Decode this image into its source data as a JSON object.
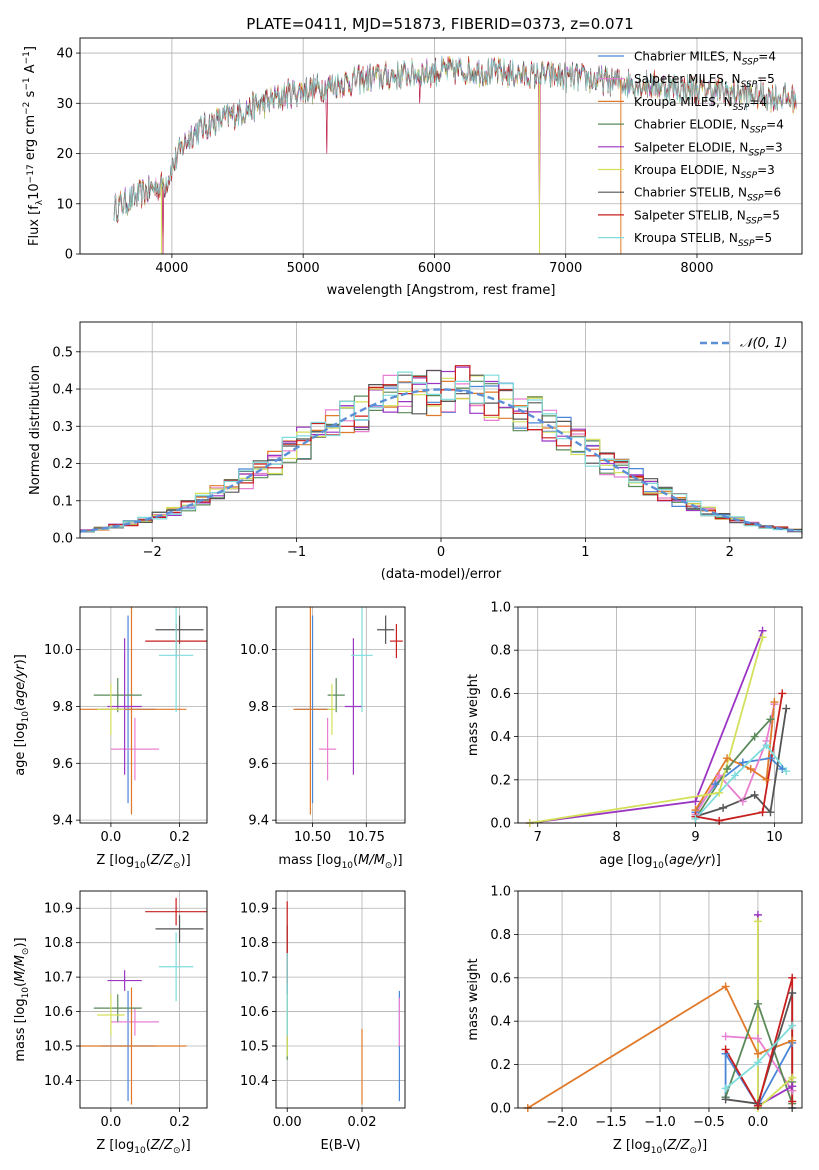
{
  "figure": {
    "title": "PLATE=0411, MJD=51873, FIBERID=0373, z=0.071"
  },
  "colors": {
    "Chabrier MILES": "#4a86d8",
    "Salpeter MILES": "#e87fd0",
    "Kroupa MILES": "#e07a2a",
    "Chabrier ELODIE": "#5a8a5a",
    "Salpeter ELODIE": "#9b35c4",
    "Kroupa ELODIE": "#d4e05a",
    "Chabrier STELIB": "#555555",
    "Salpeter STELIB": "#c81e1e",
    "Kroupa STELIB": "#7fdcdc",
    "gaussian": "#5b8fd6",
    "grid": "#b0b0b0"
  },
  "legend_spectrum": [
    {
      "name": "Chabrier MILES",
      "n": "4"
    },
    {
      "name": "Salpeter MILES",
      "n": "5"
    },
    {
      "name": "Kroupa MILES",
      "n": "4"
    },
    {
      "name": "Chabrier ELODIE",
      "n": "4"
    },
    {
      "name": "Salpeter ELODIE",
      "n": "3"
    },
    {
      "name": "Kroupa ELODIE",
      "n": "3"
    },
    {
      "name": "Chabrier STELIB",
      "n": "6"
    },
    {
      "name": "Salpeter STELIB",
      "n": "5"
    },
    {
      "name": "Kroupa STELIB",
      "n": "5"
    }
  ],
  "chart_data": [
    {
      "id": "spectrum",
      "type": "line",
      "xlabel": "wavelength [Angstrom, rest frame]",
      "ylabel": "Flux [f_λ10^-17 erg cm^-2 s^-1 A^-1]",
      "xlim": [
        3300,
        8800
      ],
      "ylim": [
        0,
        43
      ],
      "xticks": [
        4000,
        5000,
        6000,
        7000,
        8000
      ],
      "yticks": [
        0,
        10,
        20,
        30,
        40
      ],
      "continuum_x": [
        3550,
        3700,
        3850,
        3950,
        4050,
        4150,
        4300,
        4500,
        4700,
        4900,
        5100,
        5300,
        5500,
        5700,
        5900,
        6100,
        6300,
        6500,
        6700,
        6900,
        7100,
        7300,
        7500,
        7700,
        7900,
        8100,
        8300,
        8500,
        8700
      ],
      "continuum_y": [
        9,
        11,
        13,
        14,
        20,
        24,
        26,
        28,
        30,
        32,
        33,
        34,
        35,
        35.5,
        36,
        36.5,
        36.5,
        36,
        35.5,
        35.5,
        35,
        34.5,
        34,
        33.5,
        33,
        32.5,
        32,
        31.5,
        31
      ],
      "grid": true
    },
    {
      "id": "residuals",
      "type": "histogram",
      "xlabel": "(data-model)/error",
      "ylabel": "Normed distribution",
      "xlim": [
        -2.5,
        2.5
      ],
      "ylim": [
        0,
        0.58
      ],
      "xticks": [
        -2,
        -1,
        0,
        1,
        2
      ],
      "yticks": [
        0,
        0.1,
        0.2,
        0.3,
        0.4,
        0.5
      ],
      "bin_width": 0.1,
      "legend": "𝒩(0, 1)",
      "grid": true
    },
    {
      "id": "age-vs-Z",
      "type": "errorbar",
      "xlabel": "Z [log10(Z/Z⊙)]",
      "ylabel": "age [log10(age/yr)]",
      "xlim": [
        -0.09,
        0.28
      ],
      "ylim": [
        9.39,
        10.15
      ],
      "xticks": [
        0.0,
        0.2
      ],
      "yticks": [
        9.4,
        9.6,
        9.8,
        10.0
      ],
      "points": [
        {
          "series": "Chabrier MILES",
          "x": 0.05,
          "xerr": 0.08,
          "y": 9.79,
          "yerr": 0.33
        },
        {
          "series": "Salpeter MILES",
          "x": 0.07,
          "xerr": 0.07,
          "y": 9.65,
          "yerr": 0.11
        },
        {
          "series": "Kroupa MILES",
          "x": 0.06,
          "xerr": 0.16,
          "y": 9.79,
          "yerr": 0.37
        },
        {
          "series": "Chabrier ELODIE",
          "x": 0.02,
          "xerr": 0.07,
          "y": 9.84,
          "yerr": 0.06
        },
        {
          "series": "Salpeter ELODIE",
          "x": 0.04,
          "xerr": 0.05,
          "y": 9.8,
          "yerr": 0.24
        },
        {
          "series": "Kroupa ELODIE",
          "x": 0.0,
          "xerr": 0.04,
          "y": 9.79,
          "yerr": 0.09
        },
        {
          "series": "Chabrier STELIB",
          "x": 0.2,
          "xerr": 0.07,
          "y": 10.07,
          "yerr": 0.05
        },
        {
          "series": "Salpeter STELIB",
          "x": 0.19,
          "xerr": 0.09,
          "y": 10.03,
          "yerr": 0.06
        },
        {
          "series": "Kroupa STELIB",
          "x": 0.19,
          "xerr": 0.05,
          "y": 9.98,
          "yerr": 0.2
        }
      ],
      "grid": true
    },
    {
      "id": "age-vs-mass",
      "type": "errorbar",
      "xlabel": "mass [log10(M/M⊙)]",
      "ylabel": "",
      "xlim": [
        10.33,
        10.93
      ],
      "ylim": [
        9.39,
        10.15
      ],
      "xticks": [
        10.5,
        10.75
      ],
      "yticks": [
        9.4,
        9.6,
        9.8,
        10.0
      ],
      "points": [
        {
          "series": "Chabrier MILES",
          "x": 10.5,
          "xerr": 0.08,
          "y": 9.79,
          "yerr": 0.33
        },
        {
          "series": "Salpeter MILES",
          "x": 10.57,
          "xerr": 0.04,
          "y": 9.65,
          "yerr": 0.11
        },
        {
          "series": "Kroupa MILES",
          "x": 10.49,
          "xerr": 0.08,
          "y": 9.79,
          "yerr": 0.37
        },
        {
          "series": "Chabrier ELODIE",
          "x": 10.61,
          "xerr": 0.04,
          "y": 9.84,
          "yerr": 0.06
        },
        {
          "series": "Salpeter ELODIE",
          "x": 10.69,
          "xerr": 0.04,
          "y": 9.8,
          "yerr": 0.24
        },
        {
          "series": "Kroupa ELODIE",
          "x": 10.59,
          "xerr": 0.02,
          "y": 9.79,
          "yerr": 0.09
        },
        {
          "series": "Chabrier STELIB",
          "x": 10.84,
          "xerr": 0.04,
          "y": 10.07,
          "yerr": 0.05
        },
        {
          "series": "Salpeter STELIB",
          "x": 10.89,
          "xerr": 0.03,
          "y": 10.03,
          "yerr": 0.06
        },
        {
          "series": "Kroupa STELIB",
          "x": 10.73,
          "xerr": 0.05,
          "y": 9.98,
          "yerr": 0.2
        }
      ],
      "grid": true
    },
    {
      "id": "mass-vs-Z",
      "type": "errorbar",
      "xlabel": "Z [log10(Z/Z⊙)]",
      "ylabel": "mass [log10(M/M⊙)]",
      "xlim": [
        -0.09,
        0.28
      ],
      "ylim": [
        10.32,
        10.95
      ],
      "xticks": [
        0.0,
        0.2
      ],
      "yticks": [
        10.4,
        10.5,
        10.6,
        10.7,
        10.8,
        10.9
      ],
      "points": [
        {
          "series": "Chabrier MILES",
          "x": 0.05,
          "xerr": 0.08,
          "y": 10.5,
          "yerr": 0.16
        },
        {
          "series": "Salpeter MILES",
          "x": 0.07,
          "xerr": 0.07,
          "y": 10.57,
          "yerr": 0.04
        },
        {
          "series": "Kroupa MILES",
          "x": 0.06,
          "xerr": 0.16,
          "y": 10.5,
          "yerr": 0.17
        },
        {
          "series": "Chabrier ELODIE",
          "x": 0.02,
          "xerr": 0.07,
          "y": 10.61,
          "yerr": 0.04
        },
        {
          "series": "Salpeter ELODIE",
          "x": 0.04,
          "xerr": 0.05,
          "y": 10.69,
          "yerr": 0.03
        },
        {
          "series": "Kroupa ELODIE",
          "x": 0.0,
          "xerr": 0.04,
          "y": 10.59,
          "yerr": 0.06
        },
        {
          "series": "Chabrier STELIB",
          "x": 0.2,
          "xerr": 0.07,
          "y": 10.84,
          "yerr": 0.04
        },
        {
          "series": "Salpeter STELIB",
          "x": 0.19,
          "xerr": 0.09,
          "y": 10.89,
          "yerr": 0.04
        },
        {
          "series": "Kroupa STELIB",
          "x": 0.19,
          "xerr": 0.05,
          "y": 10.73,
          "yerr": 0.1
        }
      ],
      "grid": true
    },
    {
      "id": "mass-vs-EBV",
      "type": "errorbar",
      "xlabel": "E(B-V)",
      "ylabel": "",
      "xlim": [
        -0.003,
        0.0315
      ],
      "ylim": [
        10.32,
        10.95
      ],
      "xticks": [
        0.0,
        0.02
      ],
      "yticks": [
        10.4,
        10.5,
        10.6,
        10.7,
        10.8,
        10.9
      ],
      "points": [
        {
          "series": "Chabrier MILES",
          "x": 0.03,
          "xerr": 0,
          "y": 10.5,
          "yerr": 0.16
        },
        {
          "series": "Salpeter MILES",
          "x": 0.03,
          "xerr": 0,
          "y": 10.57,
          "yerr": 0.07
        },
        {
          "series": "Kroupa MILES",
          "x": 0.02,
          "xerr": 0,
          "y": 10.44,
          "yerr": 0.11
        },
        {
          "series": "Chabrier ELODIE",
          "x": 0.0,
          "xerr": 0,
          "y": 10.55,
          "yerr": 0.09
        },
        {
          "series": "Salpeter ELODIE",
          "x": 0.0,
          "xerr": 0,
          "y": 10.62,
          "yerr": 0.1
        },
        {
          "series": "Kroupa ELODIE",
          "x": 0.0,
          "xerr": 0,
          "y": 10.57,
          "yerr": 0.1
        },
        {
          "series": "Chabrier STELIB",
          "x": 0.0,
          "xerr": 0,
          "y": 10.75,
          "yerr": 0.1
        },
        {
          "series": "Salpeter STELIB",
          "x": 0.0,
          "xerr": 0,
          "y": 10.8,
          "yerr": 0.12
        },
        {
          "series": "Kroupa STELIB",
          "x": 0.0,
          "xerr": 0,
          "y": 10.65,
          "yerr": 0.12
        }
      ],
      "grid": true
    },
    {
      "id": "weight-vs-age",
      "type": "line",
      "xlabel": "age [log10(age/yr)]",
      "ylabel": "mass weight",
      "xlim": [
        6.75,
        10.35
      ],
      "ylim": [
        0,
        1.0
      ],
      "xticks": [
        7,
        8,
        9,
        10
      ],
      "yticks": [
        0.0,
        0.2,
        0.4,
        0.6,
        0.8,
        1.0
      ],
      "series": [
        {
          "name": "Chabrier MILES",
          "x": [
            9.0,
            9.25,
            9.6,
            9.95,
            10.1
          ],
          "y": [
            0.05,
            0.18,
            0.28,
            0.3,
            0.25
          ]
        },
        {
          "name": "Salpeter MILES",
          "x": [
            9.0,
            9.3,
            9.6,
            9.9,
            10.0
          ],
          "y": [
            0.04,
            0.22,
            0.1,
            0.38,
            0.55
          ]
        },
        {
          "name": "Kroupa MILES",
          "x": [
            9.0,
            9.4,
            9.7,
            9.9,
            10.0
          ],
          "y": [
            0.06,
            0.3,
            0.25,
            0.2,
            0.56
          ]
        },
        {
          "name": "Chabrier ELODIE",
          "x": [
            9.0,
            9.4,
            9.75,
            9.95
          ],
          "y": [
            0.02,
            0.25,
            0.4,
            0.48
          ]
        },
        {
          "name": "Salpeter ELODIE",
          "x": [
            6.9,
            9.0,
            9.85
          ],
          "y": [
            0.0,
            0.1,
            0.89
          ]
        },
        {
          "name": "Kroupa ELODIE",
          "x": [
            6.9,
            9.3,
            9.85
          ],
          "y": [
            0.0,
            0.14,
            0.86
          ]
        },
        {
          "name": "Chabrier STELIB",
          "x": [
            9.0,
            9.35,
            9.75,
            9.95,
            10.15
          ],
          "y": [
            0.03,
            0.07,
            0.13,
            0.05,
            0.53
          ]
        },
        {
          "name": "Salpeter STELIB",
          "x": [
            9.0,
            9.3,
            9.85,
            10.1
          ],
          "y": [
            0.03,
            0.01,
            0.05,
            0.6
          ]
        },
        {
          "name": "Kroupa STELIB",
          "x": [
            9.0,
            9.5,
            9.9,
            10.15
          ],
          "y": [
            0.02,
            0.22,
            0.36,
            0.24
          ]
        }
      ],
      "grid": true
    },
    {
      "id": "weight-vs-Z",
      "type": "line",
      "xlabel": "Z [log10(Z/Z⊙)]",
      "ylabel": "mass weight",
      "xlim": [
        -2.45,
        0.45
      ],
      "ylim": [
        0,
        1.0
      ],
      "xticks": [
        -2.0,
        -1.5,
        -1.0,
        -0.5,
        0.0
      ],
      "yticks": [
        0.0,
        0.2,
        0.4,
        0.6,
        0.8,
        1.0
      ],
      "series": [
        {
          "name": "Chabrier MILES",
          "x": [
            -0.33,
            -0.33,
            0.0,
            0.35
          ],
          "y": [
            0.05,
            0.25,
            0.01,
            0.3
          ]
        },
        {
          "name": "Salpeter MILES",
          "x": [
            -0.33,
            0.0,
            0.35,
            0.35
          ],
          "y": [
            0.33,
            0.32,
            0.08,
            0.1
          ]
        },
        {
          "name": "Kroupa MILES",
          "x": [
            -2.35,
            -0.33,
            0.0,
            0.35
          ],
          "y": [
            0.0,
            0.56,
            0.25,
            0.31
          ]
        },
        {
          "name": "Chabrier ELODIE",
          "x": [
            -0.33,
            0.0,
            0.35,
            0.35
          ],
          "y": [
            0.05,
            0.48,
            0.02,
            0.12
          ]
        },
        {
          "name": "Salpeter ELODIE",
          "x": [
            0.0,
            0.0,
            0.35
          ],
          "y": [
            0.89,
            0.01,
            0.1
          ]
        },
        {
          "name": "Kroupa ELODIE",
          "x": [
            0.0,
            0.0,
            0.35
          ],
          "y": [
            0.86,
            0.0,
            0.14
          ]
        },
        {
          "name": "Chabrier STELIB",
          "x": [
            -0.33,
            0.0,
            0.35,
            0.35
          ],
          "y": [
            0.04,
            0.02,
            0.53,
            0.0
          ]
        },
        {
          "name": "Salpeter STELIB",
          "x": [
            -0.33,
            0.0,
            0.35,
            0.35
          ],
          "y": [
            0.27,
            0.01,
            0.6,
            0.03
          ]
        },
        {
          "name": "Kroupa STELIB",
          "x": [
            -0.33,
            0.0,
            0.35
          ],
          "y": [
            0.09,
            0.21,
            0.38
          ]
        }
      ],
      "grid": true
    }
  ]
}
